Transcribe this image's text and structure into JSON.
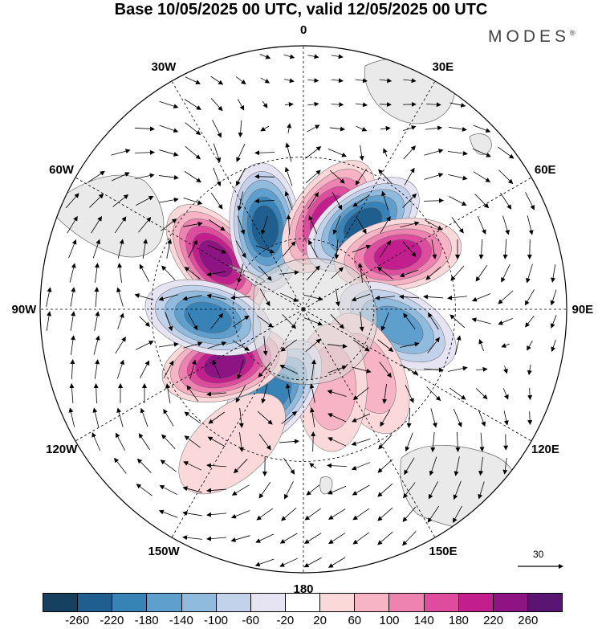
{
  "title": "Base 10/05/2025 00 UTC, valid 12/05/2025 00 UTC",
  "brand": "MODES",
  "brand_mark": "®",
  "longitude_labels": [
    "0",
    "30E",
    "60E",
    "90E",
    "120E",
    "150E",
    "180",
    "150W",
    "120W",
    "90W",
    "60W",
    "30W"
  ],
  "vector_reference": "30",
  "colorbar": {
    "colors": [
      "#15405f",
      "#1f5f8f",
      "#3783b8",
      "#5e9fcd",
      "#90bbdc",
      "#c2d2ea",
      "#e6e3f2",
      "#ffffff",
      "#fbd8da",
      "#f7b4c4",
      "#ee82b1",
      "#de4d9d",
      "#c21e8e",
      "#8f1483",
      "#5a1572"
    ],
    "tick_labels": [
      "-260",
      "-220",
      "-180",
      "-140",
      "-100",
      "-60",
      "-20",
      "20",
      "60",
      "100",
      "140",
      "180",
      "220",
      "260"
    ]
  },
  "anomaly_centers": [
    {
      "lon": -60,
      "lat": -48,
      "value": 240
    },
    {
      "lon": -25,
      "lat": -52,
      "value": -220
    },
    {
      "lon": 15,
      "lat": -50,
      "value": 200
    },
    {
      "lon": 35,
      "lat": -47,
      "value": -240
    },
    {
      "lon": 60,
      "lat": -45,
      "value": 210
    },
    {
      "lon": 100,
      "lat": -50,
      "value": -150
    },
    {
      "lon": 135,
      "lat": -52,
      "value": 70
    },
    {
      "lon": 160,
      "lat": -55,
      "value": 70
    },
    {
      "lon": -160,
      "lat": -52,
      "value": -180
    },
    {
      "lon": -125,
      "lat": -50,
      "value": 240
    },
    {
      "lon": -95,
      "lat": -50,
      "value": -200
    },
    {
      "lon": -152,
      "lat": -30,
      "value": 40
    }
  ]
}
